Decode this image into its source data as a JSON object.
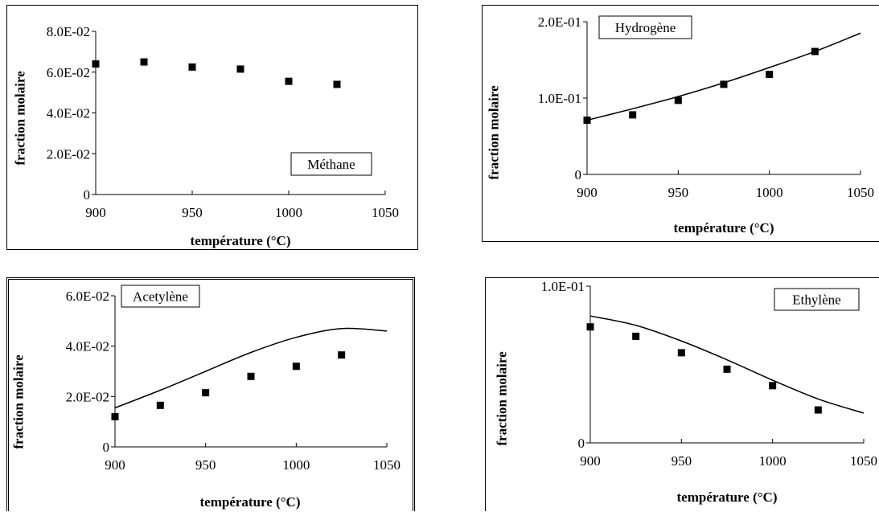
{
  "chart_data": [
    {
      "type": "scatter",
      "legend": "Méthane",
      "xlabel": "température (°C)",
      "ylabel": "fraction molaire",
      "xlim": [
        900,
        1050
      ],
      "ylim": [
        0,
        0.08
      ],
      "xticks": [
        900,
        950,
        1000,
        1050
      ],
      "xtick_labels": [
        "900",
        "950",
        "1000",
        "1050"
      ],
      "yticks": [
        0,
        0.02,
        0.04,
        0.06,
        0.08
      ],
      "ytick_labels": [
        "0",
        "2.0E-02",
        "4.0E-02",
        "6.0E-02",
        "8.0E-02"
      ],
      "legend_placement": "bottom-right",
      "points": {
        "x": [
          900,
          925,
          950,
          975,
          1000,
          1025
        ],
        "y": [
          0.064,
          0.065,
          0.0625,
          0.0615,
          0.0555,
          0.054
        ]
      },
      "curve": null
    },
    {
      "type": "scatter",
      "legend": "Hydrogène",
      "xlabel": "température (°C)",
      "ylabel": "fraction molaire",
      "xlim": [
        900,
        1050
      ],
      "ylim": [
        0,
        0.2
      ],
      "xticks": [
        900,
        950,
        1000,
        1050
      ],
      "xtick_labels": [
        "900",
        "950",
        "1000",
        "1050"
      ],
      "yticks": [
        0,
        0.1,
        0.2
      ],
      "ytick_labels": [
        "0",
        "1.0E-01",
        "2.0E-01"
      ],
      "legend_placement": "top-left",
      "points": {
        "x": [
          900,
          925,
          950,
          975,
          1000,
          1025
        ],
        "y": [
          0.071,
          0.078,
          0.097,
          0.118,
          0.131,
          0.161
        ]
      },
      "curve": {
        "x": [
          900,
          925,
          950,
          975,
          1000,
          1025,
          1050
        ],
        "y": [
          0.071,
          0.086,
          0.102,
          0.12,
          0.14,
          0.161,
          0.185
        ]
      }
    },
    {
      "type": "scatter",
      "legend": "Acetylène",
      "xlabel": "température (°C)",
      "ylabel": "fraction molaire",
      "xlim": [
        900,
        1050
      ],
      "ylim": [
        0,
        0.06
      ],
      "xticks": [
        900,
        950,
        1000,
        1050
      ],
      "xtick_labels": [
        "900",
        "950",
        "1000",
        "1050"
      ],
      "yticks": [
        0,
        0.02,
        0.04,
        0.06
      ],
      "ytick_labels": [
        "0",
        "2.0E-02",
        "4.0E-02",
        "6.0E-02"
      ],
      "legend_placement": "top-left",
      "points": {
        "x": [
          900,
          925,
          950,
          975,
          1000,
          1025
        ],
        "y": [
          0.012,
          0.0165,
          0.0215,
          0.028,
          0.032,
          0.0365
        ]
      },
      "curve": {
        "x": [
          900,
          925,
          950,
          975,
          1000,
          1025,
          1050
        ],
        "y": [
          0.0155,
          0.0225,
          0.03,
          0.0375,
          0.0435,
          0.047,
          0.046
        ]
      }
    },
    {
      "type": "scatter",
      "legend": "Ethylène",
      "xlabel": "température (°C)",
      "ylabel": "fraction molaire",
      "xlim": [
        900,
        1050
      ],
      "ylim": [
        0,
        0.1
      ],
      "xticks": [
        900,
        950,
        1000,
        1050
      ],
      "xtick_labels": [
        "900",
        "950",
        "1000",
        "1050"
      ],
      "yticks": [
        0,
        0.1
      ],
      "ytick_labels": [
        "0",
        "1.0E-01"
      ],
      "legend_placement": "top-right",
      "points": {
        "x": [
          900,
          925,
          950,
          975,
          1000,
          1025
        ],
        "y": [
          0.074,
          0.068,
          0.0575,
          0.047,
          0.0365,
          0.021
        ]
      },
      "curve": {
        "x": [
          900,
          925,
          950,
          975,
          1000,
          1025,
          1050
        ],
        "y": [
          0.081,
          0.075,
          0.065,
          0.053,
          0.04,
          0.028,
          0.019
        ]
      }
    }
  ]
}
